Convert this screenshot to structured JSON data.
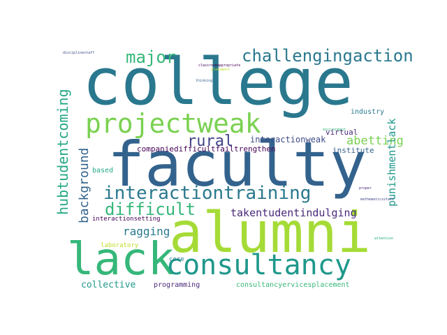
{
  "palette": {
    "teal": "#2a788e",
    "green": "#22a884",
    "lime": "#7ad151",
    "yellowgreen": "#a5db36",
    "blue": "#33638d",
    "indigo": "#414487",
    "purple": "#482878",
    "dark": "#440154",
    "mint": "#35b779",
    "sea": "#1f988b",
    "steel": "#3e4a89",
    "gold": "#bddf26"
  },
  "words": {
    "college": "college",
    "faculty": "faculty",
    "alumni": "alumni",
    "lack": "lack",
    "consultancy": "consultancy",
    "projectweak": "projectweak",
    "interactiontraining": "interactiontraining",
    "challengingaction": "challengingaction",
    "major": "major",
    "difficult": "difficult",
    "rural": "rural",
    "background": "background",
    "hubtudentcoming": "hubtudentcoming",
    "punishmentlack": "punishmentlack",
    "takentudentindulging": "takentudentindulging",
    "ragging": "ragging",
    "abetting": "abetting",
    "interactionweak": "interactionweak",
    "companiesdifficultfailtrengthen": "companiedifficultfailtrengthen",
    "institute": "institute",
    "virtual": "virtual",
    "industry": "industry",
    "collective": "collective",
    "programming": "programming",
    "consultancyervicesplacement": "consultancyervicesplacement",
    "based": "based",
    "interactionsetting": "interactionsetting",
    "laboratory": "laboratory",
    "core": "core",
    "disciplinestaff": "disciplinestaff",
    "classroomappropriate": "classroomappropriate",
    "placement": "placement",
    "thinking": "thinking",
    "mathematicsstaff": "mathematicsstaff",
    "proper": "proper",
    "attention": "attention",
    "environment": "environment"
  }
}
